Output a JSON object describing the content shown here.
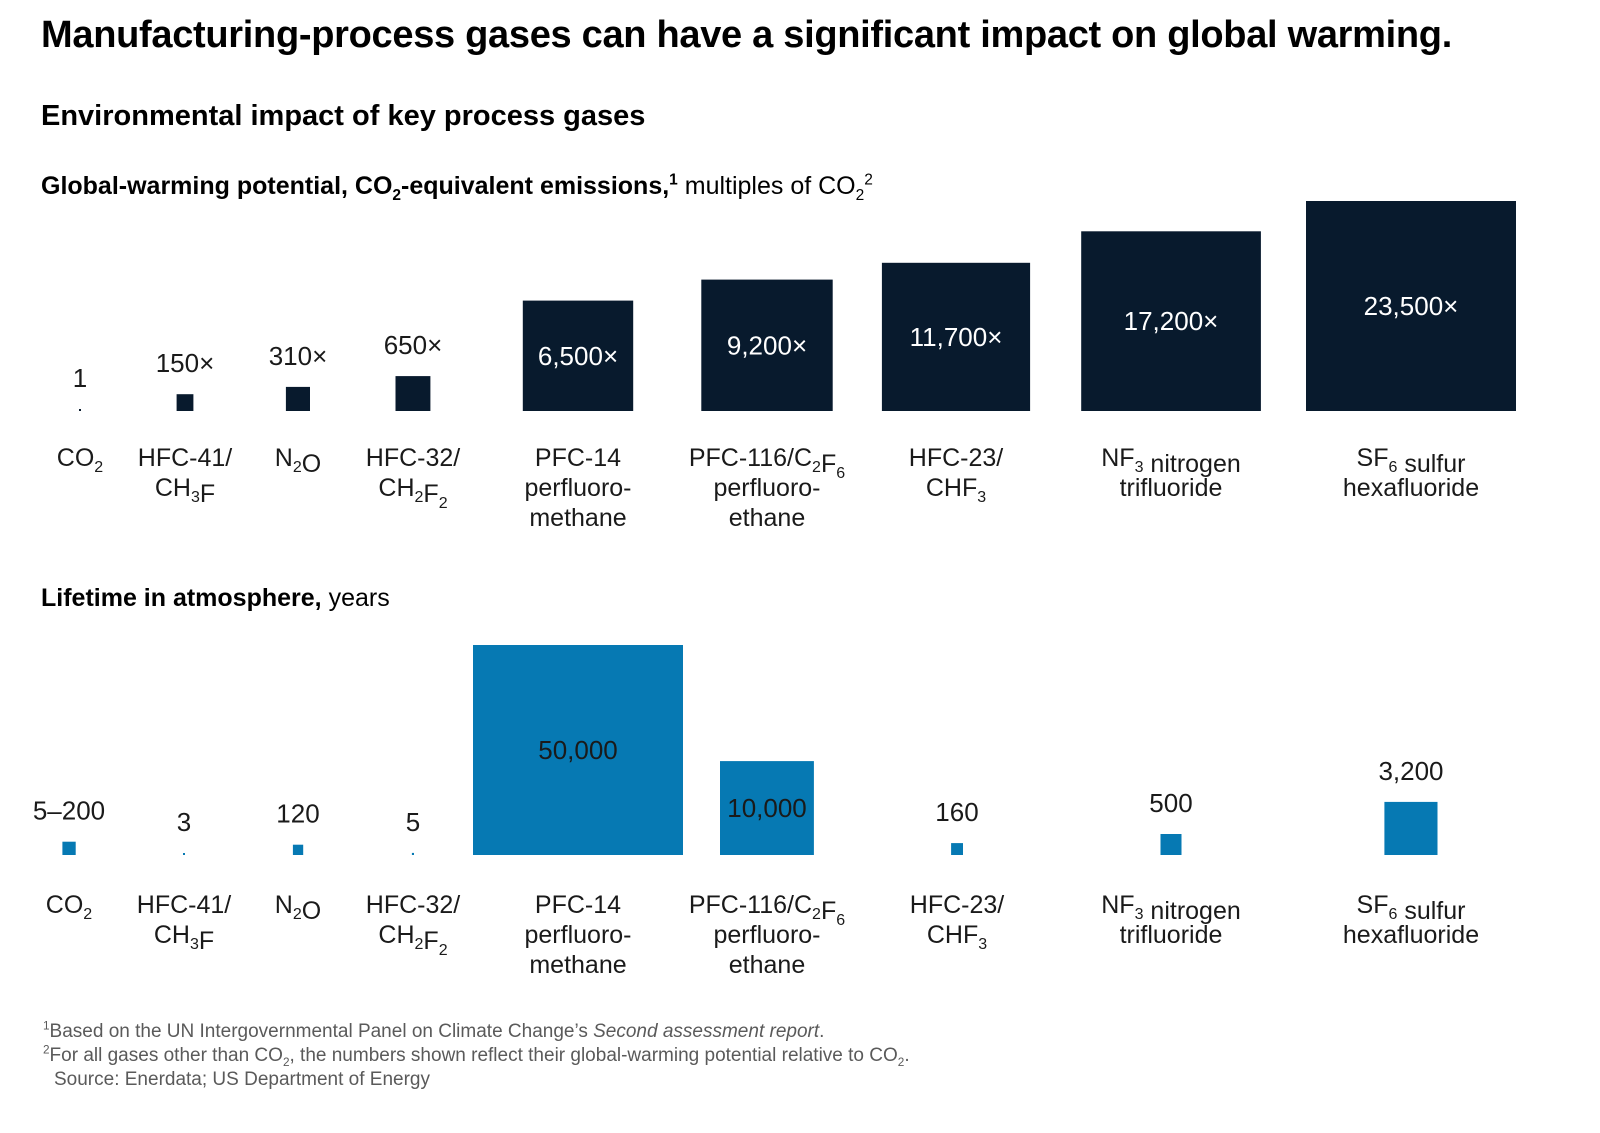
{
  "title": "Manufacturing-process gases can have a significant impact on global warming.",
  "subtitle": "Environmental impact of key process gases",
  "colors": {
    "gwp": "#081a2d",
    "lifetime": "#0679b3"
  },
  "chart_data": [
    {
      "type": "bar",
      "encoding": "square-area",
      "title": {
        "bold": "Global-warming potential, CO",
        "bold_sub": "2",
        "bold_end": "-equivalent emissions,",
        "sup": "1",
        "light": " multiples of CO",
        "light_sub": "2",
        "light_sup": "2"
      },
      "unit_suffix": "×",
      "categories": [
        [
          {
            "t": "CO"
          },
          {
            "t": "2",
            "sub": true
          }
        ],
        [
          {
            "t": "HFC-41/"
          },
          {
            "br": true
          },
          {
            "t": "CH"
          },
          {
            "t": "3",
            "sub": true
          },
          {
            "t": "F"
          }
        ],
        [
          {
            "t": "N"
          },
          {
            "t": "2",
            "sub": true
          },
          {
            "t": "O"
          }
        ],
        [
          {
            "t": "HFC-32/"
          },
          {
            "br": true
          },
          {
            "t": "CH"
          },
          {
            "t": "2",
            "sub": true
          },
          {
            "t": "F"
          },
          {
            "t": "2",
            "sub": true
          }
        ],
        [
          {
            "t": "PFC-14"
          },
          {
            "br": true
          },
          {
            "t": "perfluoro-"
          },
          {
            "br": true
          },
          {
            "t": "methane"
          }
        ],
        [
          {
            "t": "PFC-116/C"
          },
          {
            "t": "2",
            "sub": true
          },
          {
            "t": "F"
          },
          {
            "t": "6",
            "sub": true
          },
          {
            "br": true
          },
          {
            "t": "perfluoro-"
          },
          {
            "br": true
          },
          {
            "t": "ethane"
          }
        ],
        [
          {
            "t": "HFC-23/"
          },
          {
            "br": true
          },
          {
            "t": "CHF"
          },
          {
            "t": "3",
            "sub": true
          }
        ],
        [
          {
            "t": "NF"
          },
          {
            "t": "3",
            "sub": true
          },
          {
            "t": " nitrogen"
          },
          {
            "br": true
          },
          {
            "t": "trifluoride"
          }
        ],
        [
          {
            "t": "SF"
          },
          {
            "t": "6",
            "sub": true
          },
          {
            "t": " sulfur"
          },
          {
            "br": true
          },
          {
            "t": "hexafluoride"
          }
        ]
      ],
      "values": [
        1,
        150,
        310,
        650,
        6500,
        9200,
        11700,
        17200,
        23500
      ],
      "labels": [
        "1",
        "150×",
        "310×",
        "650×",
        "6,500×",
        "9,200×",
        "11,700×",
        "17,200×",
        "23,500×"
      ]
    },
    {
      "type": "bar",
      "encoding": "square-area",
      "title": {
        "bold": "Lifetime in atmosphere,",
        "light": " years"
      },
      "categories": [
        [
          {
            "t": "CO"
          },
          {
            "t": "2",
            "sub": true
          }
        ],
        [
          {
            "t": "HFC-41/"
          },
          {
            "br": true
          },
          {
            "t": "CH"
          },
          {
            "t": "3",
            "sub": true
          },
          {
            "t": "F"
          }
        ],
        [
          {
            "t": "N"
          },
          {
            "t": "2",
            "sub": true
          },
          {
            "t": "O"
          }
        ],
        [
          {
            "t": "HFC-32/"
          },
          {
            "br": true
          },
          {
            "t": "CH"
          },
          {
            "t": "2",
            "sub": true
          },
          {
            "t": "F"
          },
          {
            "t": "2",
            "sub": true
          }
        ],
        [
          {
            "t": "PFC-14"
          },
          {
            "br": true
          },
          {
            "t": "perfluoro-"
          },
          {
            "br": true
          },
          {
            "t": "methane"
          }
        ],
        [
          {
            "t": "PFC-116/C"
          },
          {
            "t": "2",
            "sub": true
          },
          {
            "t": "F"
          },
          {
            "t": "6",
            "sub": true
          },
          {
            "br": true
          },
          {
            "t": "perfluoro-"
          },
          {
            "br": true
          },
          {
            "t": "ethane"
          }
        ],
        [
          {
            "t": "HFC-23/"
          },
          {
            "br": true
          },
          {
            "t": "CHF"
          },
          {
            "t": "3",
            "sub": true
          }
        ],
        [
          {
            "t": "NF"
          },
          {
            "t": "3",
            "sub": true
          },
          {
            "t": " nitrogen"
          },
          {
            "br": true
          },
          {
            "t": "trifluoride"
          }
        ],
        [
          {
            "t": "SF"
          },
          {
            "t": "6",
            "sub": true
          },
          {
            "t": " sulfur"
          },
          {
            "br": true
          },
          {
            "t": "hexafluoride"
          }
        ]
      ],
      "values": [
        200,
        3,
        120,
        5,
        50000,
        10000,
        160,
        500,
        3200
      ],
      "labels": [
        "5–200",
        "3",
        "120",
        "5",
        "50,000",
        "10,000",
        "160",
        "500",
        "3,200"
      ]
    }
  ],
  "footnotes": {
    "note1_sup": "1",
    "note1_text": "Based on the UN Intergovernmental Panel on Climate Change’s ",
    "note1_italic": "Second assessment report",
    "note1_end": ".",
    "note2_sup": "2",
    "note2_a": "For all gases other than CO",
    "note2_sub1": "2",
    "note2_b": ", the numbers shown reflect their global-warming potential relative to CO",
    "note2_sub2": "2",
    "note2_c": ".",
    "source": "Source: Enerdata; US Department of Energy"
  }
}
